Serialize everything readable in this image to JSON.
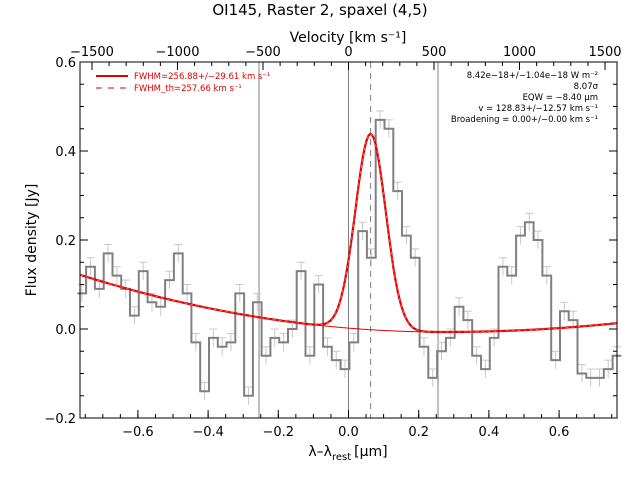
{
  "chart_data": {
    "type": "line",
    "title": "OI145, Raster 2, spaxel (4,5)",
    "xlabel": "λ–λrest [μm]",
    "xlabel_main": "λ–λ",
    "xlabel_sub": "rest",
    "xlabel_unit": "[μm]",
    "ylabel": "Flux density [Jy]",
    "top_axis_label": "Velocity [km s⁻¹]",
    "xlim": [
      -0.765,
      0.765
    ],
    "ylim": [
      -0.2,
      0.6
    ],
    "top_xlim": [
      -1570,
      1570
    ],
    "x_ticks": [
      -0.6,
      -0.4,
      -0.2,
      0.0,
      0.2,
      0.4,
      0.6
    ],
    "x_tick_labels": [
      "−0.6",
      "−0.4",
      "−0.2",
      "0.0",
      "0.2",
      "0.4",
      "0.6"
    ],
    "y_ticks": [
      -0.2,
      0.0,
      0.2,
      0.4,
      0.6
    ],
    "y_tick_labels": [
      "−0.2",
      "0.0",
      "0.2",
      "0.4",
      "0.6"
    ],
    "top_ticks": [
      -1500,
      -1000,
      -500,
      0,
      500,
      1000,
      1500
    ],
    "top_tick_labels": [
      "−1500",
      "−1000",
      "−500",
      "0",
      "500",
      "1000",
      "1500"
    ],
    "vertical_lines": [
      -0.255,
      0.0,
      0.255
    ],
    "line_center_dashed": 0.063,
    "series": [
      {
        "name": "spectrum",
        "style": "step",
        "color": "#808080",
        "x": [
          -0.76,
          -0.735,
          -0.71,
          -0.685,
          -0.66,
          -0.635,
          -0.61,
          -0.585,
          -0.56,
          -0.535,
          -0.51,
          -0.485,
          -0.46,
          -0.435,
          -0.41,
          -0.385,
          -0.36,
          -0.335,
          -0.31,
          -0.285,
          -0.26,
          -0.235,
          -0.21,
          -0.185,
          -0.16,
          -0.135,
          -0.11,
          -0.085,
          -0.06,
          -0.035,
          -0.01,
          0.015,
          0.04,
          0.065,
          0.09,
          0.115,
          0.14,
          0.165,
          0.19,
          0.215,
          0.24,
          0.265,
          0.29,
          0.315,
          0.34,
          0.365,
          0.39,
          0.415,
          0.44,
          0.465,
          0.49,
          0.515,
          0.54,
          0.565,
          0.59,
          0.615,
          0.64,
          0.665,
          0.69,
          0.715,
          0.74,
          0.765
        ],
        "y": [
          0.08,
          0.14,
          0.09,
          0.17,
          0.12,
          0.09,
          0.03,
          0.13,
          0.06,
          0.05,
          0.11,
          0.17,
          0.08,
          -0.03,
          -0.14,
          -0.02,
          -0.04,
          -0.03,
          0.08,
          -0.15,
          0.06,
          -0.06,
          -0.02,
          -0.03,
          0.0,
          0.13,
          -0.06,
          0.1,
          -0.04,
          -0.07,
          -0.09,
          -0.03,
          0.22,
          0.16,
          0.47,
          0.45,
          0.31,
          0.21,
          0.16,
          -0.04,
          -0.11,
          -0.05,
          -0.02,
          0.05,
          0.02,
          -0.06,
          -0.09,
          -0.02,
          0.14,
          0.12,
          0.21,
          0.24,
          0.2,
          0.12,
          -0.07,
          0.04,
          0.02,
          -0.1,
          -0.11,
          -0.11,
          -0.09,
          -0.06
        ],
        "err": 0.02
      },
      {
        "name": "FWHM=256.88+/−29.61 km s⁻¹",
        "style": "solid",
        "color": "#e00000",
        "model": "gaussian_plus_quadratic",
        "gauss_center": 0.063,
        "gauss_amplitude": 0.44,
        "gauss_sigma": 0.0433,
        "baseline_quadratic": [
          0.11,
          -0.765,
          0.2,
          0.45
        ]
      },
      {
        "name": "FWHM_th=257.66 km s⁻¹",
        "style": "dashed",
        "color": "#e00000"
      }
    ],
    "legend_placement": "top-left",
    "annotations": [
      "8.42e−18+/−1.04e−18 W m⁻²",
      "8.07σ",
      "EQW = −8.40 μm",
      "v = 128.83+/−12.57 km s⁻¹",
      "Broadening = 0.00+/−0.00 km s⁻¹"
    ]
  },
  "colors": {
    "spectrum": "#808080",
    "fit": "#e00000",
    "frame": "#000000",
    "vline": "#808080"
  }
}
